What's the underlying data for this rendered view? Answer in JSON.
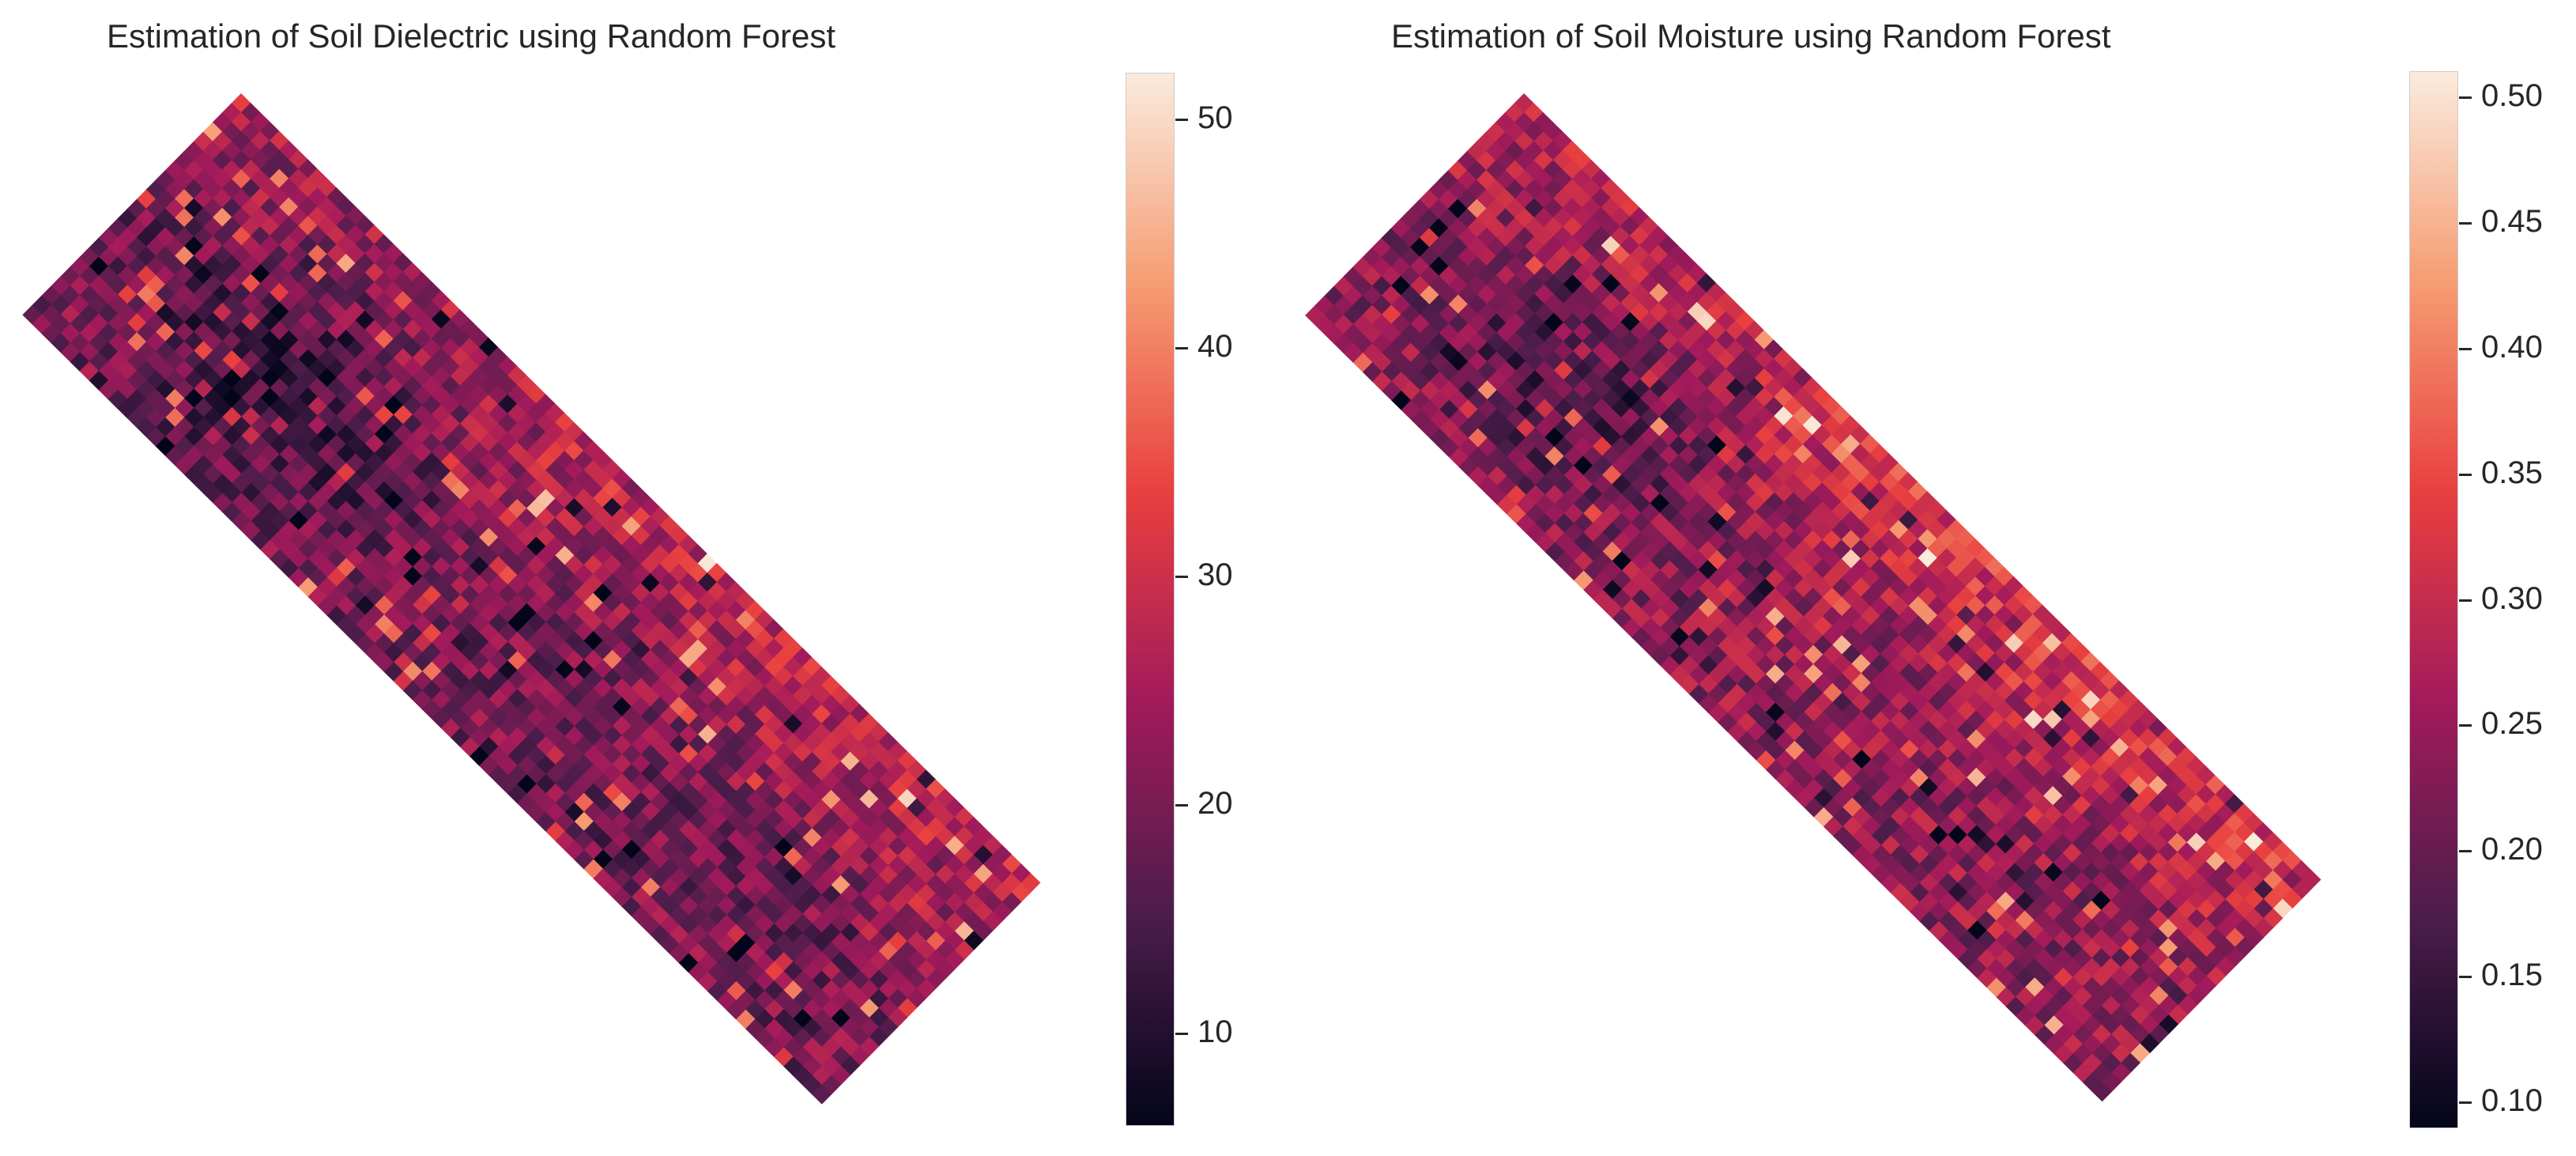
{
  "charts": [
    {
      "title": "Estimation of Soil Dielectric using Random Forest",
      "colorbar": {
        "min": 6,
        "max": 52,
        "ticks": [
          "10",
          "20",
          "30",
          "40",
          "50"
        ],
        "tick_values": [
          10,
          20,
          30,
          40,
          50
        ]
      }
    },
    {
      "title": "Estimation of Soil Moisture using Random Forest",
      "colorbar": {
        "min": 0.09,
        "max": 0.51,
        "ticks": [
          "0.10",
          "0.15",
          "0.20",
          "0.25",
          "0.30",
          "0.35",
          "0.40",
          "0.45",
          "0.50"
        ],
        "tick_values": [
          0.1,
          0.15,
          0.2,
          0.25,
          0.3,
          0.35,
          0.4,
          0.45,
          0.5
        ]
      }
    }
  ],
  "chart_data": [
    {
      "type": "heatmap",
      "title": "Estimation of Soil Dielectric using Random Forest",
      "xlabel": "",
      "ylabel": "",
      "colormap": "rocket",
      "colormap_stops": [
        "#03051a",
        "#4c1d4b",
        "#a11a5b",
        "#e83f3f",
        "#f69c73",
        "#faebdd"
      ],
      "colorbar_range": [
        6,
        52
      ],
      "colorbar_ticks": [
        10,
        20,
        30,
        40,
        50
      ],
      "grid": false
    },
    {
      "type": "heatmap",
      "title": "Estimation of Soil Moisture using Random Forest",
      "xlabel": "",
      "ylabel": "",
      "colormap": "rocket",
      "colormap_stops": [
        "#03051a",
        "#4c1d4b",
        "#a11a5b",
        "#e83f3f",
        "#f69c73",
        "#faebdd"
      ],
      "colorbar_range": [
        0.09,
        0.51
      ],
      "colorbar_ticks": [
        0.1,
        0.15,
        0.2,
        0.25,
        0.3,
        0.35,
        0.4,
        0.45,
        0.5
      ],
      "grid": false
    }
  ]
}
